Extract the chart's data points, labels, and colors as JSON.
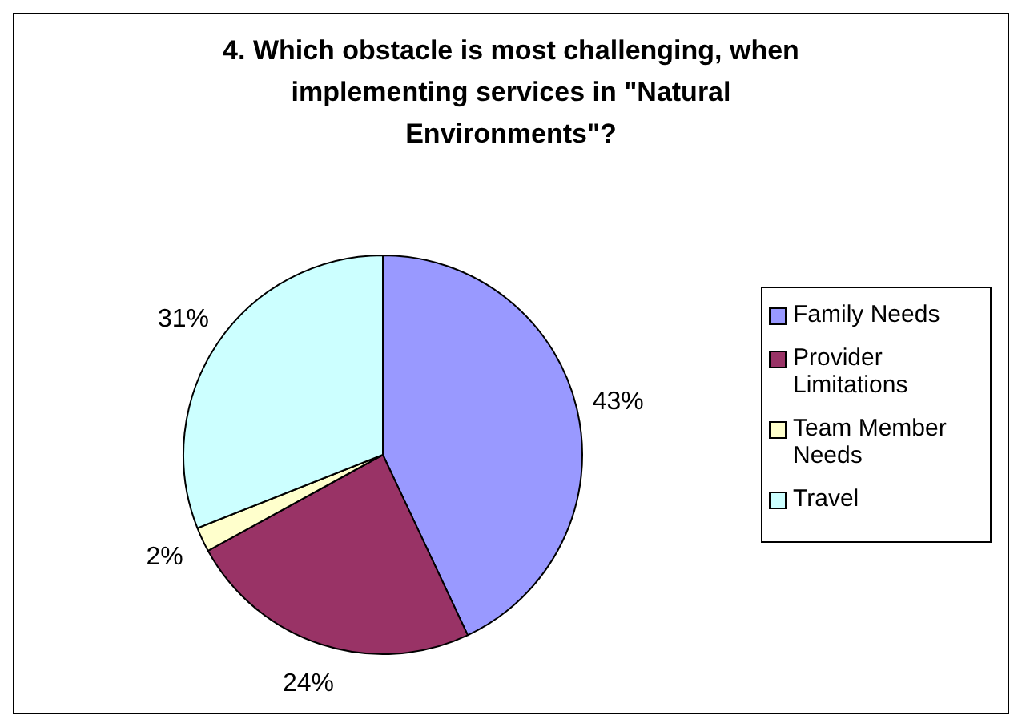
{
  "chart_data": {
    "type": "pie",
    "title": "4. Which obstacle is most challenging, when implementing services in \"Natural Environments\"?",
    "categories": [
      "Family Needs",
      "Provider Limitations",
      "Team Member Needs",
      "Travel"
    ],
    "values": [
      43,
      24,
      2,
      31
    ],
    "colors": [
      "#9999ff",
      "#993366",
      "#ffffcc",
      "#ccffff"
    ],
    "value_labels": [
      "43%",
      "24%",
      "2%",
      "31%"
    ],
    "legend": "right"
  }
}
